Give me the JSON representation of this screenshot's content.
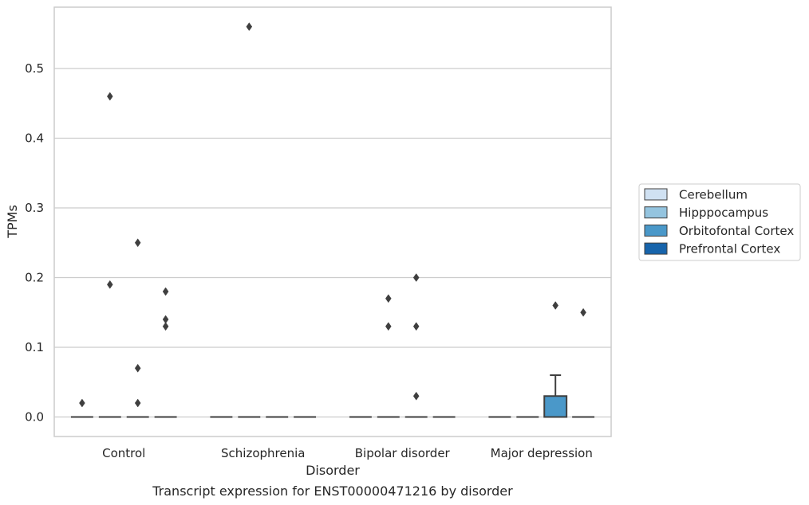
{
  "chart_data": {
    "type": "box",
    "title": "",
    "caption": "Transcript expression for ENST00000471216 by disorder",
    "xlabel": "Disorder",
    "ylabel": "TPMs",
    "ylim": [
      -0.028,
      0.588
    ],
    "yticks": [
      0.0,
      0.1,
      0.2,
      0.3,
      0.4,
      0.5
    ],
    "ytick_labels": [
      "0.0",
      "0.1",
      "0.2",
      "0.3",
      "0.4",
      "0.5"
    ],
    "grid": "horizontal",
    "legend_position": "right",
    "categories": [
      "Control",
      "Schizophrenia",
      "Bipolar disorder",
      "Major depression"
    ],
    "series": [
      {
        "name": "Cerebellum",
        "color": "#d0e1f2",
        "boxes": [
          {
            "q1": 0,
            "median": 0,
            "q3": 0,
            "whisker_low": 0,
            "whisker_high": 0,
            "outliers": [
              0.02
            ]
          },
          {
            "q1": 0,
            "median": 0,
            "q3": 0,
            "whisker_low": 0,
            "whisker_high": 0,
            "outliers": []
          },
          {
            "q1": 0,
            "median": 0,
            "q3": 0,
            "whisker_low": 0,
            "whisker_high": 0,
            "outliers": []
          },
          {
            "q1": 0,
            "median": 0,
            "q3": 0,
            "whisker_low": 0,
            "whisker_high": 0,
            "outliers": []
          }
        ]
      },
      {
        "name": "Hipppocampus",
        "color": "#94c4df",
        "boxes": [
          {
            "q1": 0,
            "median": 0,
            "q3": 0,
            "whisker_low": 0,
            "whisker_high": 0,
            "outliers": [
              0.46,
              0.19
            ]
          },
          {
            "q1": 0,
            "median": 0,
            "q3": 0,
            "whisker_low": 0,
            "whisker_high": 0,
            "outliers": [
              0.56
            ]
          },
          {
            "q1": 0,
            "median": 0,
            "q3": 0,
            "whisker_low": 0,
            "whisker_high": 0,
            "outliers": [
              0.17,
              0.13
            ]
          },
          {
            "q1": 0,
            "median": 0,
            "q3": 0,
            "whisker_low": 0,
            "whisker_high": 0,
            "outliers": []
          }
        ]
      },
      {
        "name": "Orbitofontal Cortex",
        "color": "#4a98c9",
        "boxes": [
          {
            "q1": 0,
            "median": 0,
            "q3": 0,
            "whisker_low": 0,
            "whisker_high": 0,
            "outliers": [
              0.25,
              0.07,
              0.02
            ]
          },
          {
            "q1": 0,
            "median": 0,
            "q3": 0,
            "whisker_low": 0,
            "whisker_high": 0,
            "outliers": []
          },
          {
            "q1": 0,
            "median": 0,
            "q3": 0,
            "whisker_low": 0,
            "whisker_high": 0,
            "outliers": [
              0.2,
              0.13,
              0.03
            ]
          },
          {
            "q1": 0,
            "median": 0,
            "q3": 0.03,
            "whisker_low": 0,
            "whisker_high": 0.06,
            "outliers": [
              0.16
            ]
          }
        ]
      },
      {
        "name": "Prefrontal Cortex",
        "color": "#1764ab",
        "boxes": [
          {
            "q1": 0,
            "median": 0,
            "q3": 0,
            "whisker_low": 0,
            "whisker_high": 0,
            "outliers": [
              0.18,
              0.14,
              0.13
            ]
          },
          {
            "q1": 0,
            "median": 0,
            "q3": 0,
            "whisker_low": 0,
            "whisker_high": 0,
            "outliers": []
          },
          {
            "q1": 0,
            "median": 0,
            "q3": 0,
            "whisker_low": 0,
            "whisker_high": 0,
            "outliers": []
          },
          {
            "q1": 0,
            "median": 0,
            "q3": 0,
            "whisker_low": 0,
            "whisker_high": 0,
            "outliers": [
              0.15
            ]
          }
        ]
      }
    ]
  }
}
